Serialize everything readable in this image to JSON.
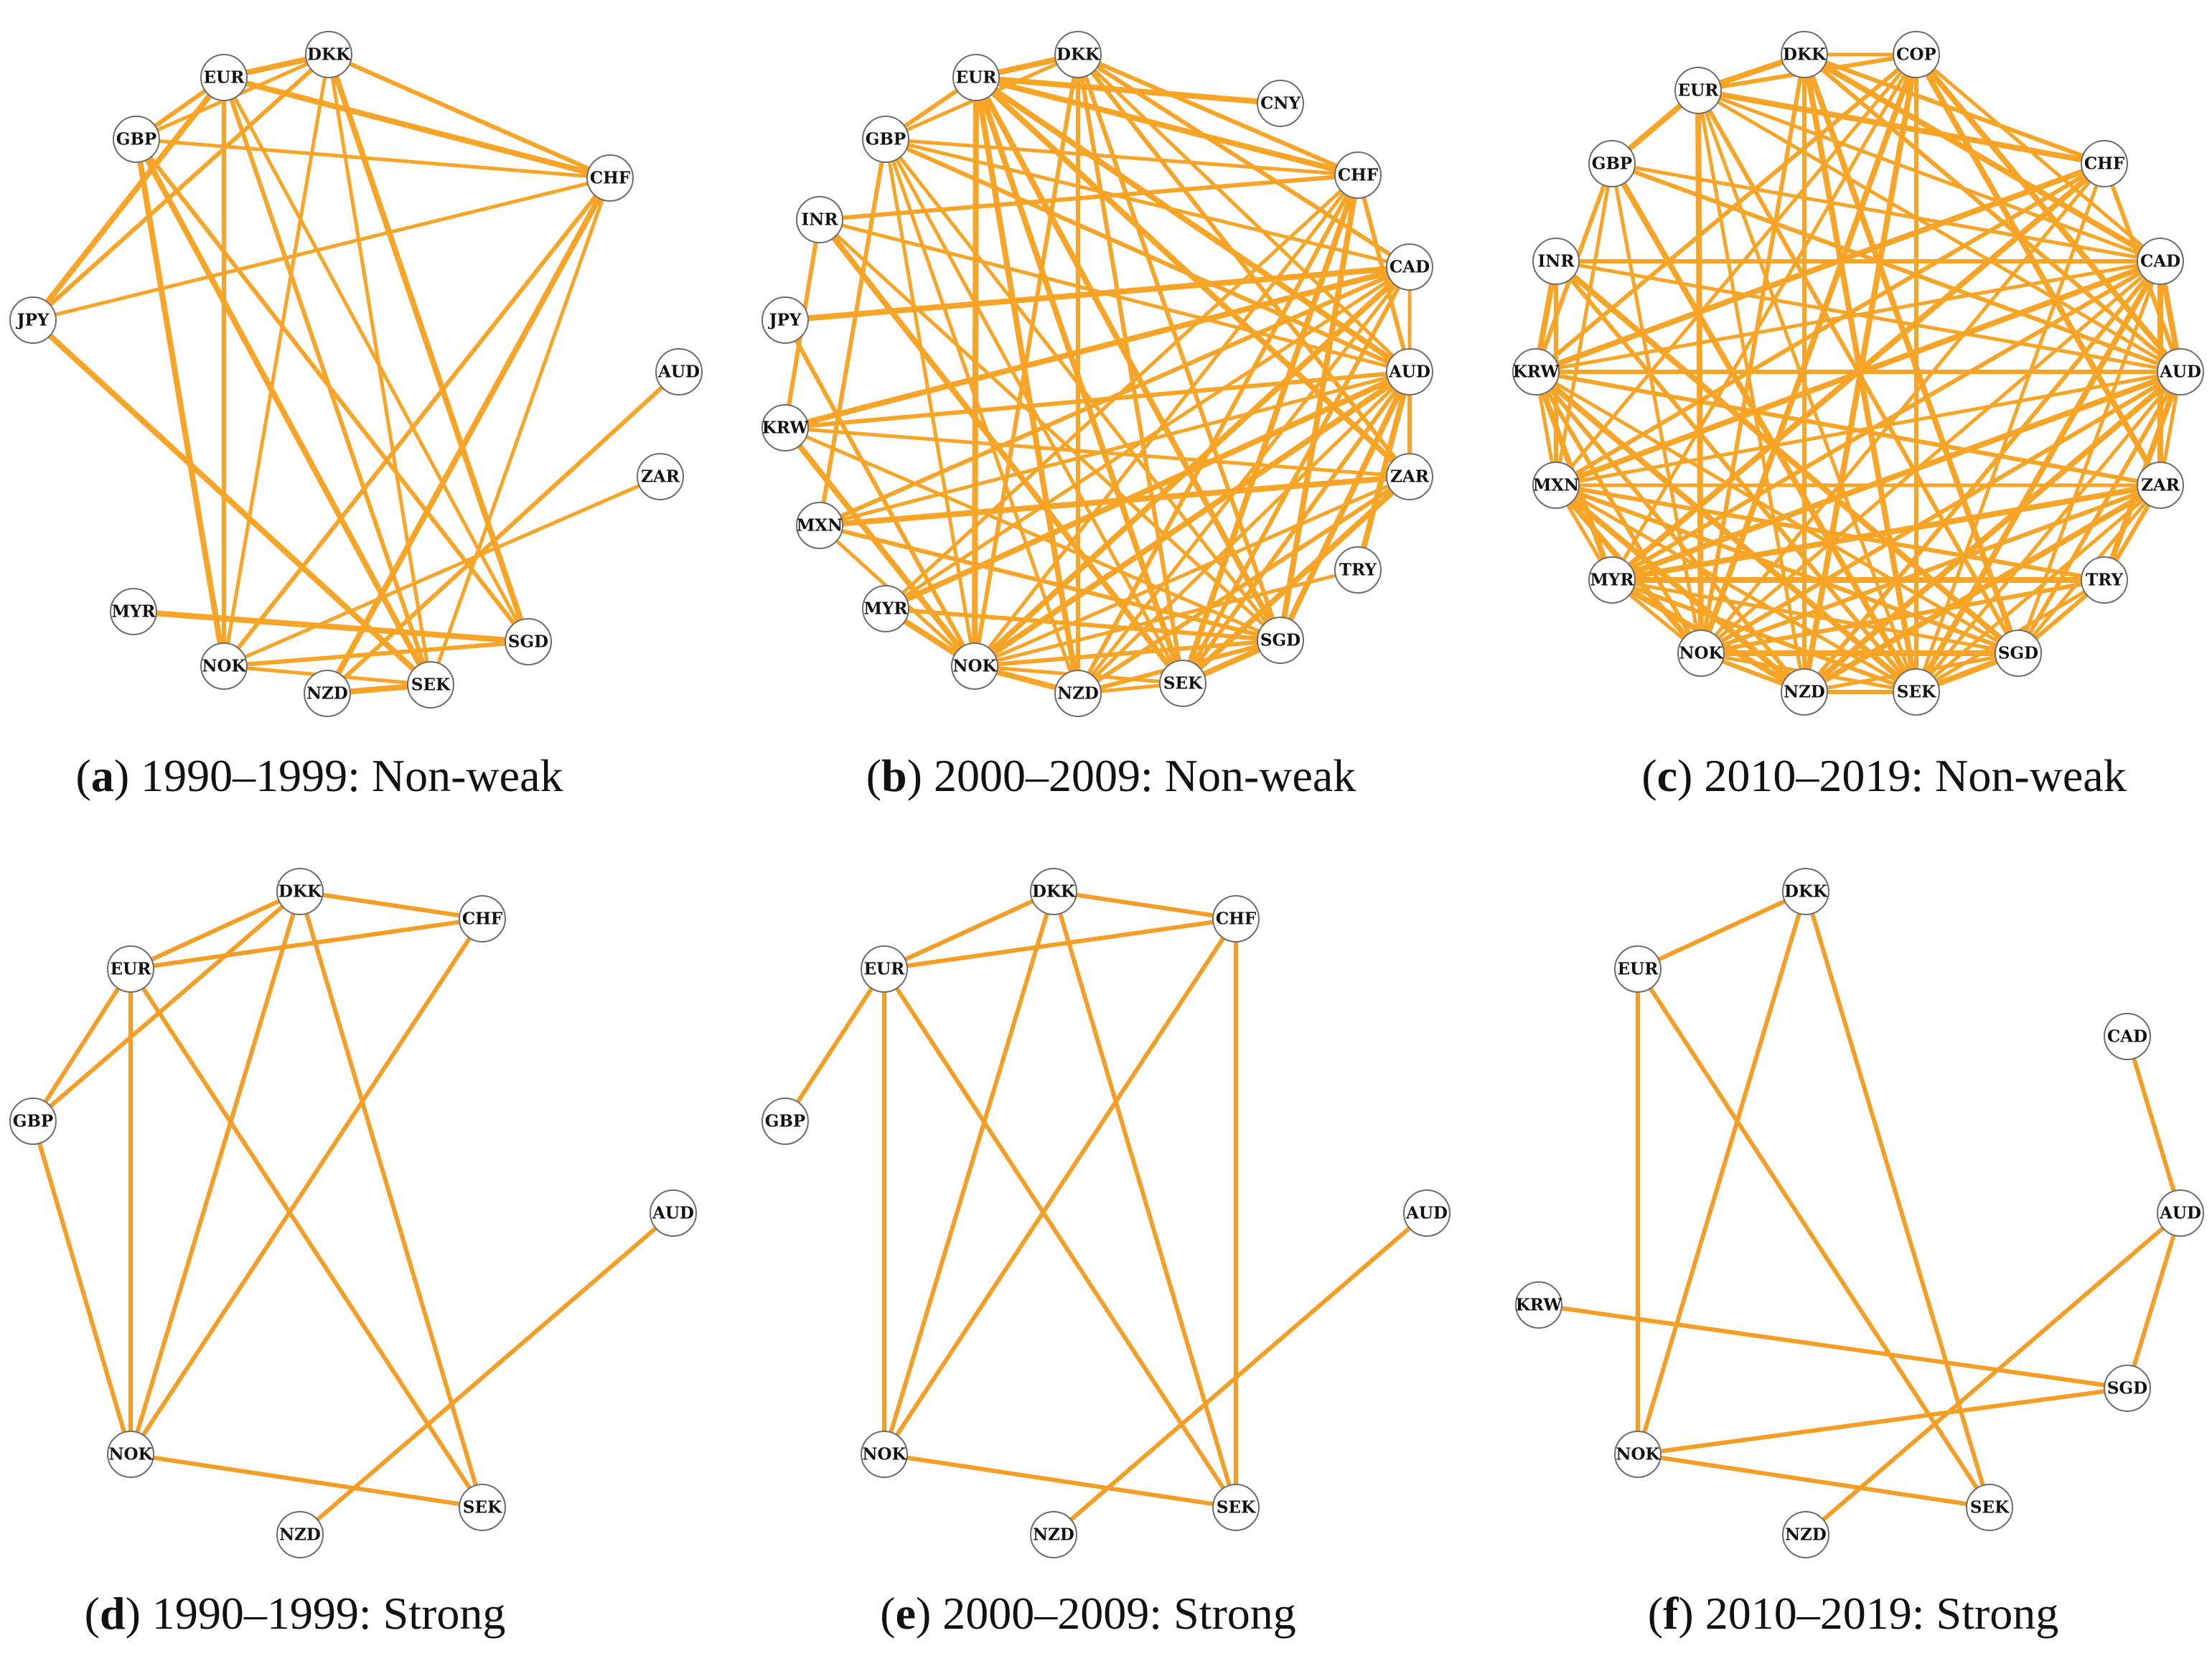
{
  "panels": [
    {
      "caption_letter": "a",
      "caption_text": "1990–1999: Non-weak",
      "nodes": [
        "DKK",
        "EUR",
        "GBP",
        "CHF",
        "JPY",
        "AUD",
        "ZAR",
        "MYR",
        "NOK",
        "NZD",
        "SEK",
        "SGD"
      ],
      "edges": [
        [
          "EUR",
          "DKK"
        ],
        [
          "GBP",
          "EUR"
        ],
        [
          "GBP",
          "DKK"
        ],
        [
          "EUR",
          "CHF"
        ],
        [
          "DKK",
          "CHF"
        ],
        [
          "GBP",
          "CHF"
        ],
        [
          "JPY",
          "EUR"
        ],
        [
          "JPY",
          "DKK"
        ],
        [
          "JPY",
          "CHF"
        ],
        [
          "JPY",
          "SEK"
        ],
        [
          "EUR",
          "NOK"
        ],
        [
          "DKK",
          "NOK"
        ],
        [
          "GBP",
          "NOK"
        ],
        [
          "EUR",
          "SEK"
        ],
        [
          "DKK",
          "SEK"
        ],
        [
          "GBP",
          "SEK"
        ],
        [
          "GBP",
          "SGD"
        ],
        [
          "EUR",
          "SGD"
        ],
        [
          "DKK",
          "SGD"
        ],
        [
          "CHF",
          "NOK"
        ],
        [
          "CHF",
          "SEK"
        ],
        [
          "CHF",
          "NZD"
        ],
        [
          "AUD",
          "NZD"
        ],
        [
          "ZAR",
          "NOK"
        ],
        [
          "MYR",
          "SGD"
        ],
        [
          "NOK",
          "SGD"
        ],
        [
          "NOK",
          "SEK"
        ],
        [
          "NZD",
          "SEK"
        ]
      ]
    },
    {
      "caption_letter": "b",
      "caption_text": "2000–2009: Non-weak",
      "nodes": [
        "EUR",
        "DKK",
        "CNY",
        "GBP",
        "CHF",
        "INR",
        "CAD",
        "JPY",
        "AUD",
        "KRW",
        "ZAR",
        "MXN",
        "TRY",
        "MYR",
        "SGD",
        "NOK",
        "SEK",
        "NZD"
      ],
      "edges": [
        [
          "EUR",
          "DKK"
        ],
        [
          "GBP",
          "EUR"
        ],
        [
          "GBP",
          "DKK"
        ],
        [
          "EUR",
          "CHF"
        ],
        [
          "DKK",
          "CHF"
        ],
        [
          "GBP",
          "CHF"
        ],
        [
          "EUR",
          "CNY"
        ],
        [
          "DKK",
          "CAD"
        ],
        [
          "DKK",
          "AUD"
        ],
        [
          "EUR",
          "AUD"
        ],
        [
          "GBP",
          "AUD"
        ],
        [
          "GBP",
          "CAD"
        ],
        [
          "EUR",
          "NOK"
        ],
        [
          "DKK",
          "NOK"
        ],
        [
          "GBP",
          "NOK"
        ],
        [
          "EUR",
          "SEK"
        ],
        [
          "DKK",
          "SEK"
        ],
        [
          "GBP",
          "SEK"
        ],
        [
          "EUR",
          "NZD"
        ],
        [
          "DKK",
          "NZD"
        ],
        [
          "GBP",
          "NZD"
        ],
        [
          "EUR",
          "SGD"
        ],
        [
          "DKK",
          "SGD"
        ],
        [
          "GBP",
          "SGD"
        ],
        [
          "EUR",
          "ZAR"
        ],
        [
          "DKK",
          "ZAR"
        ],
        [
          "CHF",
          "NOK"
        ],
        [
          "CHF",
          "SEK"
        ],
        [
          "CHF",
          "NZD"
        ],
        [
          "CHF",
          "MYR"
        ],
        [
          "CHF",
          "SGD"
        ],
        [
          "CHF",
          "AUD"
        ],
        [
          "CAD",
          "AUD"
        ],
        [
          "CAD",
          "NOK"
        ],
        [
          "CAD",
          "SEK"
        ],
        [
          "CAD",
          "NZD"
        ],
        [
          "CAD",
          "KRW"
        ],
        [
          "CAD",
          "MXN"
        ],
        [
          "CAD",
          "MYR"
        ],
        [
          "AUD",
          "NOK"
        ],
        [
          "AUD",
          "SEK"
        ],
        [
          "AUD",
          "NZD"
        ],
        [
          "AUD",
          "SGD"
        ],
        [
          "AUD",
          "KRW"
        ],
        [
          "AUD",
          "MXN"
        ],
        [
          "AUD",
          "MYR"
        ],
        [
          "AUD",
          "ZAR"
        ],
        [
          "ZAR",
          "NOK"
        ],
        [
          "ZAR",
          "SEK"
        ],
        [
          "ZAR",
          "NZD"
        ],
        [
          "ZAR",
          "KRW"
        ],
        [
          "ZAR",
          "MXN"
        ],
        [
          "INR",
          "CHF"
        ],
        [
          "INR",
          "AUD"
        ],
        [
          "INR",
          "SEK"
        ],
        [
          "INR",
          "KRW"
        ],
        [
          "INR",
          "SGD"
        ],
        [
          "JPY",
          "CAD"
        ],
        [
          "JPY",
          "NOK"
        ],
        [
          "KRW",
          "SGD"
        ],
        [
          "KRW",
          "NOK"
        ],
        [
          "MXN",
          "SGD"
        ],
        [
          "MXN",
          "NOK"
        ],
        [
          "MYR",
          "NOK"
        ],
        [
          "MYR",
          "SGD"
        ],
        [
          "NOK",
          "SEK"
        ],
        [
          "NOK",
          "NZD"
        ],
        [
          "NOK",
          "SGD"
        ],
        [
          "SEK",
          "NZD"
        ],
        [
          "SEK",
          "SGD"
        ],
        [
          "NZD",
          "SGD"
        ],
        [
          "TRY",
          "NOK"
        ],
        [
          "TRY",
          "AUD"
        ],
        [
          "GBP",
          "MXN"
        ]
      ]
    },
    {
      "caption_letter": "c",
      "caption_text": "2010–2019: Non-weak",
      "nodes": [
        "DKK",
        "COP",
        "EUR",
        "GBP",
        "CHF",
        "INR",
        "CAD",
        "KRW",
        "AUD",
        "MXN",
        "ZAR",
        "MYR",
        "TRY",
        "NOK",
        "SGD",
        "NZD",
        "SEK"
      ],
      "edges": [
        [
          "EUR",
          "DKK"
        ],
        [
          "EUR",
          "COP"
        ],
        [
          "DKK",
          "COP"
        ],
        [
          "EUR",
          "CHF"
        ],
        [
          "DKK",
          "CHF"
        ],
        [
          "EUR",
          "CAD"
        ],
        [
          "DKK",
          "CAD"
        ],
        [
          "DKK",
          "AUD"
        ],
        [
          "EUR",
          "AUD"
        ],
        [
          "GBP",
          "EUR"
        ],
        [
          "GBP",
          "AUD"
        ],
        [
          "GBP",
          "CAD"
        ],
        [
          "EUR",
          "NOK"
        ],
        [
          "DKK",
          "NOK"
        ],
        [
          "EUR",
          "SEK"
        ],
        [
          "DKK",
          "SEK"
        ],
        [
          "DKK",
          "NZD"
        ],
        [
          "EUR",
          "NZD"
        ],
        [
          "DKK",
          "SGD"
        ],
        [
          "EUR",
          "SGD"
        ],
        [
          "COP",
          "CAD"
        ],
        [
          "COP",
          "AUD"
        ],
        [
          "COP",
          "KRW"
        ],
        [
          "COP",
          "MXN"
        ],
        [
          "COP",
          "NOK"
        ],
        [
          "COP",
          "SEK"
        ],
        [
          "COP",
          "MYR"
        ],
        [
          "COP",
          "ZAR"
        ],
        [
          "CHF",
          "AUD"
        ],
        [
          "CHF",
          "NOK"
        ],
        [
          "CHF",
          "KRW"
        ],
        [
          "CHF",
          "MXN"
        ],
        [
          "CHF",
          "SEK"
        ],
        [
          "CAD",
          "AUD"
        ],
        [
          "CAD",
          "INR"
        ],
        [
          "CAD",
          "KRW"
        ],
        [
          "CAD",
          "MXN"
        ],
        [
          "CAD",
          "MYR"
        ],
        [
          "CAD",
          "NOK"
        ],
        [
          "CAD",
          "SEK"
        ],
        [
          "CAD",
          "NZD"
        ],
        [
          "CAD",
          "SGD"
        ],
        [
          "CAD",
          "ZAR"
        ],
        [
          "AUD",
          "KRW"
        ],
        [
          "AUD",
          "MXN"
        ],
        [
          "AUD",
          "MYR"
        ],
        [
          "AUD",
          "NOK"
        ],
        [
          "AUD",
          "SEK"
        ],
        [
          "AUD",
          "NZD"
        ],
        [
          "AUD",
          "SGD"
        ],
        [
          "AUD",
          "ZAR"
        ],
        [
          "AUD",
          "TRY"
        ],
        [
          "ZAR",
          "KRW"
        ],
        [
          "ZAR",
          "MXN"
        ],
        [
          "ZAR",
          "MYR"
        ],
        [
          "ZAR",
          "NOK"
        ],
        [
          "ZAR",
          "SEK"
        ],
        [
          "ZAR",
          "NZD"
        ],
        [
          "ZAR",
          "TRY"
        ],
        [
          "ZAR",
          "SGD"
        ],
        [
          "INR",
          "KRW"
        ],
        [
          "INR",
          "MXN"
        ],
        [
          "INR",
          "AUD"
        ],
        [
          "INR",
          "SGD"
        ],
        [
          "INR",
          "SEK"
        ],
        [
          "KRW",
          "MXN"
        ],
        [
          "KRW",
          "MYR"
        ],
        [
          "KRW",
          "NOK"
        ],
        [
          "KRW",
          "SGD"
        ],
        [
          "KRW",
          "SEK"
        ],
        [
          "KRW",
          "NZD"
        ],
        [
          "MXN",
          "MYR"
        ],
        [
          "MXN",
          "NOK"
        ],
        [
          "MXN",
          "SGD"
        ],
        [
          "MXN",
          "SEK"
        ],
        [
          "MXN",
          "NZD"
        ],
        [
          "MXN",
          "TRY"
        ],
        [
          "MYR",
          "NOK"
        ],
        [
          "MYR",
          "NZD"
        ],
        [
          "MYR",
          "SEK"
        ],
        [
          "MYR",
          "SGD"
        ],
        [
          "MYR",
          "TRY"
        ],
        [
          "NOK",
          "NZD"
        ],
        [
          "NOK",
          "SEK"
        ],
        [
          "NOK",
          "SGD"
        ],
        [
          "NZD",
          "SEK"
        ],
        [
          "NZD",
          "SGD"
        ],
        [
          "SEK",
          "SGD"
        ],
        [
          "TRY",
          "SGD"
        ],
        [
          "GBP",
          "NOK"
        ],
        [
          "GBP",
          "SEK"
        ],
        [
          "GBP",
          "KRW"
        ],
        [
          "GBP",
          "MXN"
        ],
        [
          "CHF",
          "MYR"
        ],
        [
          "TRY",
          "NOK"
        ],
        [
          "TRY",
          "SEK"
        ],
        [
          "COP",
          "NZD"
        ]
      ]
    },
    {
      "caption_letter": "d",
      "caption_text": "1990–1999: Strong",
      "nodes": [
        "DKK",
        "CHF",
        "EUR",
        "GBP",
        "AUD",
        "NOK",
        "SEK",
        "NZD"
      ],
      "edges": [
        [
          "EUR",
          "DKK"
        ],
        [
          "DKK",
          "CHF"
        ],
        [
          "EUR",
          "CHF"
        ],
        [
          "GBP",
          "DKK"
        ],
        [
          "GBP",
          "EUR"
        ],
        [
          "GBP",
          "NOK"
        ],
        [
          "EUR",
          "NOK"
        ],
        [
          "DKK",
          "NOK"
        ],
        [
          "CHF",
          "NOK"
        ],
        [
          "EUR",
          "SEK"
        ],
        [
          "DKK",
          "SEK"
        ],
        [
          "NOK",
          "SEK"
        ],
        [
          "AUD",
          "NZD"
        ]
      ]
    },
    {
      "caption_letter": "e",
      "caption_text": "2000–2009: Strong",
      "nodes": [
        "DKK",
        "CHF",
        "EUR",
        "GBP",
        "AUD",
        "NOK",
        "SEK",
        "NZD"
      ],
      "edges": [
        [
          "EUR",
          "DKK"
        ],
        [
          "DKK",
          "CHF"
        ],
        [
          "EUR",
          "CHF"
        ],
        [
          "GBP",
          "EUR"
        ],
        [
          "EUR",
          "NOK"
        ],
        [
          "DKK",
          "NOK"
        ],
        [
          "CHF",
          "NOK"
        ],
        [
          "EUR",
          "SEK"
        ],
        [
          "DKK",
          "SEK"
        ],
        [
          "CHF",
          "SEK"
        ],
        [
          "NOK",
          "SEK"
        ],
        [
          "AUD",
          "NZD"
        ]
      ]
    },
    {
      "caption_letter": "f",
      "caption_text": "2010–2019: Strong",
      "nodes": [
        "DKK",
        "EUR",
        "CAD",
        "AUD",
        "KRW",
        "SGD",
        "NOK",
        "SEK",
        "NZD"
      ],
      "edges": [
        [
          "EUR",
          "DKK"
        ],
        [
          "EUR",
          "NOK"
        ],
        [
          "DKK",
          "NOK"
        ],
        [
          "EUR",
          "SEK"
        ],
        [
          "DKK",
          "SEK"
        ],
        [
          "CAD",
          "AUD"
        ],
        [
          "AUD",
          "SGD"
        ],
        [
          "AUD",
          "NZD"
        ],
        [
          "KRW",
          "SGD"
        ],
        [
          "NOK",
          "SGD"
        ],
        [
          "NOK",
          "SEK"
        ]
      ]
    }
  ]
}
